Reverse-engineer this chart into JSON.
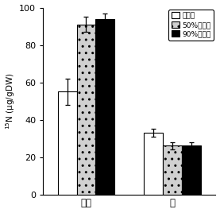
{
  "groups": [
    "外葉",
    "球"
  ],
  "categories": [
    "対照区",
    "50%遅光区",
    "90%遅光区"
  ],
  "values": [
    [
      55,
      91,
      94
    ],
    [
      33,
      26,
      26
    ]
  ],
  "errors": [
    [
      7,
      4,
      3
    ],
    [
      2,
      2,
      2
    ]
  ],
  "bar_colors": [
    "white",
    "#d0d0d0",
    "black"
  ],
  "bar_edgecolor": "black",
  "ylabel": "$^{15}$N (μg/gDW)",
  "ylim": [
    0,
    100
  ],
  "yticks": [
    0,
    20,
    40,
    60,
    80,
    100
  ],
  "legend_labels": [
    "対照区",
    "50%遅光区",
    "90%遅光区"
  ],
  "hatches": [
    "",
    "..",
    ""
  ],
  "figsize": [
    2.77,
    2.68
  ],
  "dpi": 100
}
